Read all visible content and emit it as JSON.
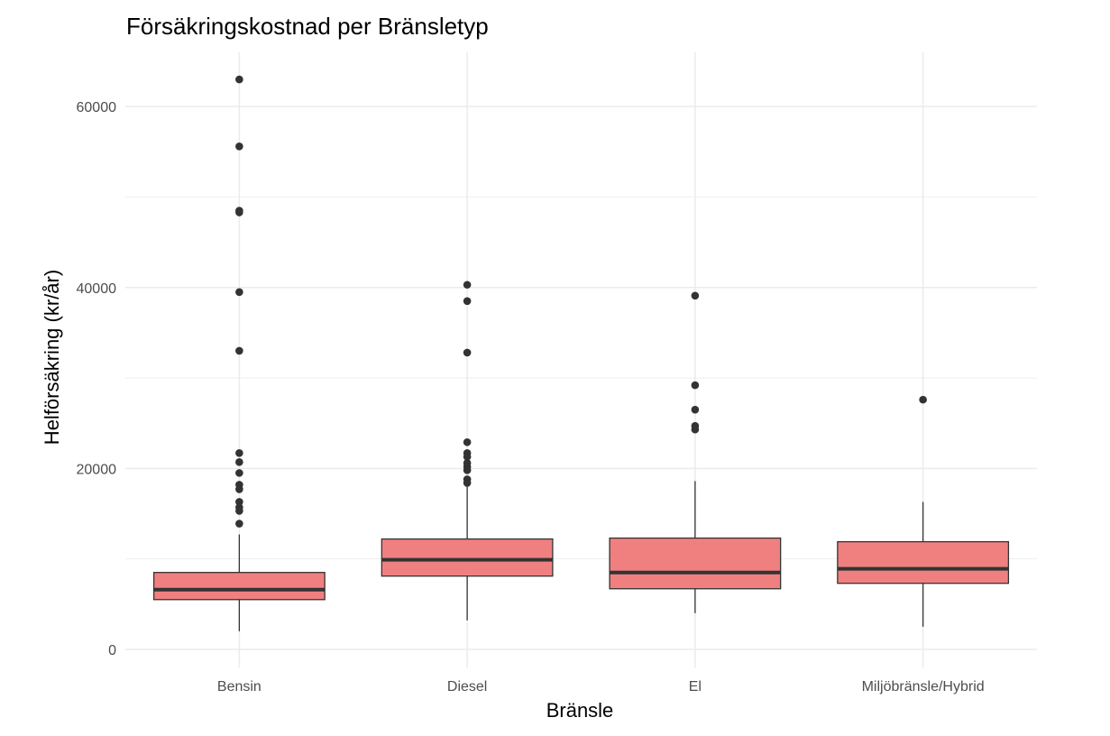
{
  "chart_data": {
    "type": "boxplot",
    "title": "Försäkringskostnad per Bränsletyp",
    "xlabel": "Bränsle",
    "ylabel": "Helförsäkring (kr/år)",
    "ylim": [
      -2000,
      66000
    ],
    "y_ticks": [
      0,
      20000,
      40000,
      60000
    ],
    "y_tick_labels": [
      "0",
      "20000",
      "40000",
      "60000"
    ],
    "y_minor_ticks": [
      10000,
      30000,
      50000
    ],
    "grid": true,
    "legend": "none",
    "categories": [
      "Bensin",
      "Diesel",
      "El",
      "Miljöbränsle/Hybrid"
    ],
    "boxes": [
      {
        "category": "Bensin",
        "whisker_low": 2000,
        "q1": 5500,
        "median": 6600,
        "q3": 8500,
        "whisker_high": 12700,
        "outliers": [
          63000,
          55600,
          48500,
          48300,
          39500,
          33000,
          21700,
          20700,
          19500,
          18200,
          17700,
          16300,
          15700,
          15300,
          13900
        ]
      },
      {
        "category": "Diesel",
        "whisker_low": 3200,
        "q1": 8100,
        "median": 9900,
        "q3": 12200,
        "whisker_high": 18000,
        "outliers": [
          40300,
          38500,
          32800,
          22900,
          21700,
          21300,
          20600,
          20200,
          19800,
          18800,
          18400
        ]
      },
      {
        "category": "El",
        "whisker_low": 4000,
        "q1": 6700,
        "median": 8500,
        "q3": 12300,
        "whisker_high": 18600,
        "outliers": [
          39100,
          29200,
          26500,
          24700,
          24300
        ]
      },
      {
        "category": "Miljöbränsle/Hybrid",
        "whisker_low": 2500,
        "q1": 7300,
        "median": 8900,
        "q3": 11900,
        "whisker_high": 16300,
        "outliers": [
          27600
        ]
      }
    ],
    "colors": {
      "box_fill": "#F08080",
      "box_stroke": "#333333",
      "outlier": "#333333",
      "grid": "#EBEBEB",
      "tick_text": "#4D4D4D"
    }
  }
}
